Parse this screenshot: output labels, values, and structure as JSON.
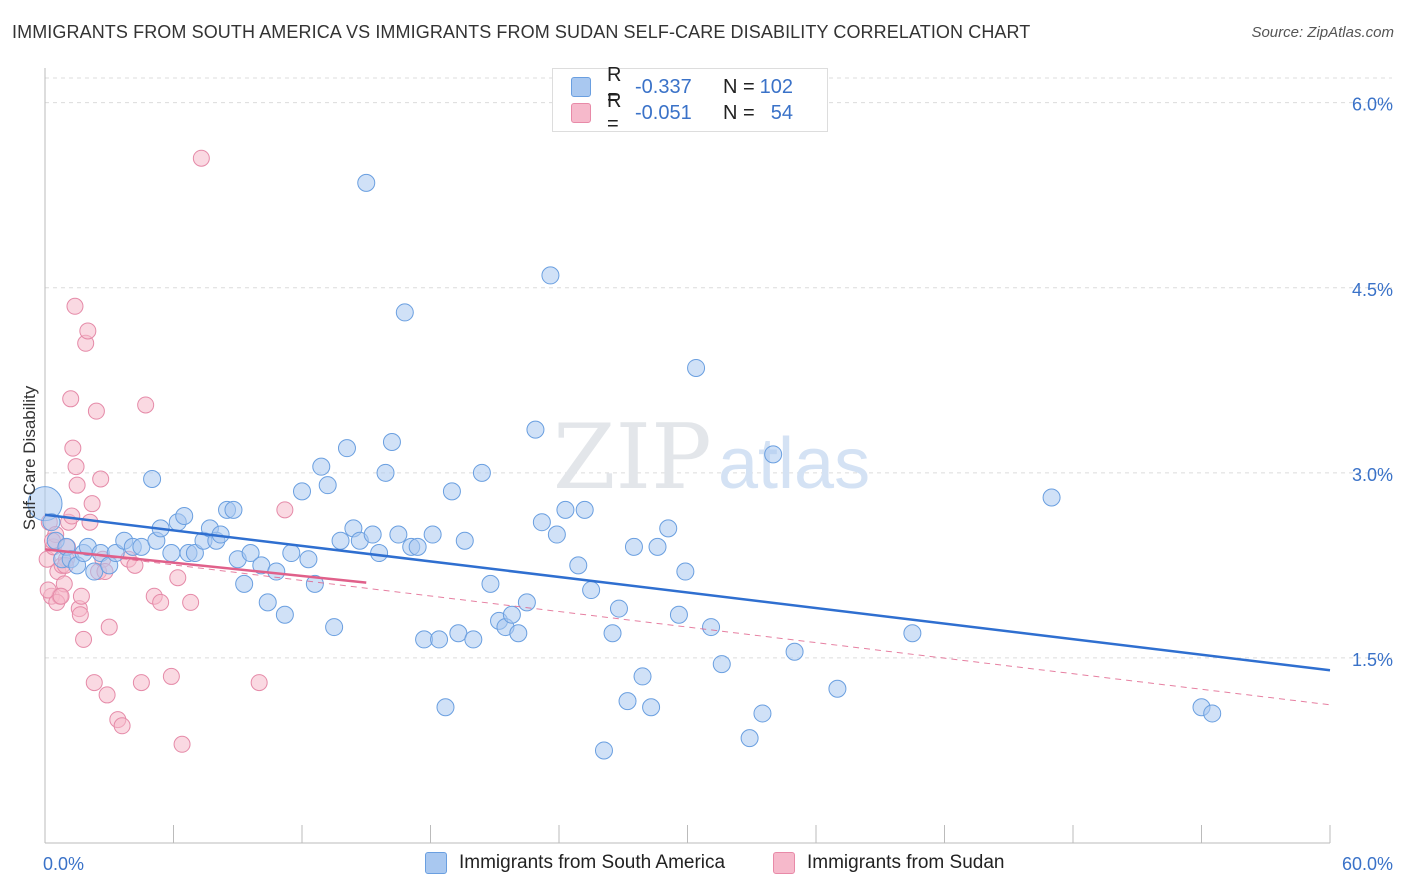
{
  "title": "IMMIGRANTS FROM SOUTH AMERICA VS IMMIGRANTS FROM SUDAN SELF-CARE DISABILITY CORRELATION CHART",
  "source": "Source: ZipAtlas.com",
  "watermark": {
    "zip": "ZIP",
    "atlas": "atlas"
  },
  "legend_top": [
    {
      "r_label": "R =",
      "r_value": "-0.337",
      "n_label": "N =",
      "n_value": "102",
      "color": "#a9c8f0",
      "stroke": "#6a9fe0"
    },
    {
      "r_label": "R =",
      "r_value": "-0.051",
      "n_label": "N =",
      "n_value": "54",
      "color": "#f6b9cb",
      "stroke": "#e88aa8"
    }
  ],
  "colors": {
    "blue_fill": "#a9c8f0",
    "blue_stroke": "#6a9fe0",
    "blue_line": "#2f6fd0",
    "pink_fill": "#f6b9cb",
    "pink_stroke": "#e58aa8",
    "pink_line": "#e0608a",
    "tick_text": "#3a72c8"
  },
  "chart_data": {
    "type": "scatter",
    "title": "IMMIGRANTS FROM SOUTH AMERICA VS IMMIGRANTS FROM SUDAN SELF-CARE DISABILITY CORRELATION CHART",
    "xlabel": "",
    "ylabel": "Self-Care Disability",
    "xlim": [
      0,
      60
    ],
    "ylim": [
      0,
      6.2
    ],
    "x_tick_labels": [
      "0.0%",
      "60.0%"
    ],
    "y_ticks": [
      1.5,
      3.0,
      4.5,
      6.0
    ],
    "y_tick_labels": [
      "1.5%",
      "3.0%",
      "4.5%",
      "6.0%"
    ],
    "grid": true,
    "legend_position": "top-center",
    "series": [
      {
        "name": "Immigrants from South America",
        "points": [
          [
            0.0,
            2.75
          ],
          [
            0.3,
            2.6
          ],
          [
            0.5,
            2.45
          ],
          [
            0.8,
            2.3
          ],
          [
            1.0,
            2.4
          ],
          [
            1.2,
            2.3
          ],
          [
            1.5,
            2.25
          ],
          [
            1.8,
            2.35
          ],
          [
            2.0,
            2.4
          ],
          [
            2.3,
            2.2
          ],
          [
            2.6,
            2.35
          ],
          [
            3.0,
            2.25
          ],
          [
            3.3,
            2.35
          ],
          [
            3.7,
            2.45
          ],
          [
            4.1,
            2.4
          ],
          [
            4.5,
            2.4
          ],
          [
            5.0,
            2.95
          ],
          [
            5.2,
            2.45
          ],
          [
            5.4,
            2.55
          ],
          [
            5.9,
            2.35
          ],
          [
            6.2,
            2.6
          ],
          [
            6.5,
            2.65
          ],
          [
            6.7,
            2.35
          ],
          [
            7.0,
            2.35
          ],
          [
            7.4,
            2.45
          ],
          [
            7.7,
            2.55
          ],
          [
            8.0,
            2.45
          ],
          [
            8.2,
            2.5
          ],
          [
            8.5,
            2.7
          ],
          [
            8.8,
            2.7
          ],
          [
            9.0,
            2.3
          ],
          [
            9.3,
            2.1
          ],
          [
            9.6,
            2.35
          ],
          [
            10.1,
            2.25
          ],
          [
            10.4,
            1.95
          ],
          [
            10.8,
            2.2
          ],
          [
            11.2,
            1.85
          ],
          [
            11.5,
            2.35
          ],
          [
            12.0,
            2.85
          ],
          [
            12.3,
            2.3
          ],
          [
            12.6,
            2.1
          ],
          [
            12.9,
            3.05
          ],
          [
            13.2,
            2.9
          ],
          [
            13.5,
            1.75
          ],
          [
            13.8,
            2.45
          ],
          [
            14.1,
            3.2
          ],
          [
            14.4,
            2.55
          ],
          [
            14.7,
            2.45
          ],
          [
            15.0,
            5.35
          ],
          [
            15.3,
            2.5
          ],
          [
            15.6,
            2.35
          ],
          [
            15.9,
            3.0
          ],
          [
            16.2,
            3.25
          ],
          [
            16.5,
            2.5
          ],
          [
            16.8,
            4.3
          ],
          [
            17.1,
            2.4
          ],
          [
            17.4,
            2.4
          ],
          [
            17.7,
            1.65
          ],
          [
            18.1,
            2.5
          ],
          [
            18.4,
            1.65
          ],
          [
            18.7,
            1.1
          ],
          [
            19.0,
            2.85
          ],
          [
            19.3,
            1.7
          ],
          [
            19.6,
            2.45
          ],
          [
            20.0,
            1.65
          ],
          [
            20.4,
            3.0
          ],
          [
            20.8,
            2.1
          ],
          [
            21.2,
            1.8
          ],
          [
            21.5,
            1.75
          ],
          [
            21.8,
            1.85
          ],
          [
            22.1,
            1.7
          ],
          [
            22.5,
            1.95
          ],
          [
            22.9,
            3.35
          ],
          [
            23.2,
            2.6
          ],
          [
            23.6,
            4.6
          ],
          [
            23.9,
            2.5
          ],
          [
            24.3,
            2.7
          ],
          [
            24.9,
            2.25
          ],
          [
            25.2,
            2.7
          ],
          [
            25.5,
            2.05
          ],
          [
            26.1,
            0.75
          ],
          [
            26.5,
            1.7
          ],
          [
            26.8,
            1.9
          ],
          [
            27.2,
            1.15
          ],
          [
            27.5,
            2.4
          ],
          [
            27.9,
            1.35
          ],
          [
            28.3,
            1.1
          ],
          [
            28.6,
            2.4
          ],
          [
            29.1,
            2.55
          ],
          [
            29.6,
            1.85
          ],
          [
            29.9,
            2.2
          ],
          [
            30.4,
            3.85
          ],
          [
            31.1,
            1.75
          ],
          [
            31.6,
            1.45
          ],
          [
            32.9,
            0.85
          ],
          [
            33.5,
            1.05
          ],
          [
            34.0,
            3.15
          ],
          [
            35.0,
            1.55
          ],
          [
            37.0,
            1.25
          ],
          [
            40.5,
            1.7
          ],
          [
            47.0,
            2.8
          ],
          [
            54.0,
            1.1
          ],
          [
            54.5,
            1.05
          ]
        ],
        "trend": {
          "x": [
            0,
            60
          ],
          "y": [
            2.66,
            1.4
          ]
        }
      },
      {
        "name": "Immigrants from Sudan",
        "points": [
          [
            0.1,
            2.3
          ],
          [
            0.2,
            2.6
          ],
          [
            0.3,
            2.0
          ],
          [
            0.4,
            2.4
          ],
          [
            0.5,
            2.5
          ],
          [
            0.6,
            2.2
          ],
          [
            0.7,
            2.0
          ],
          [
            0.8,
            2.25
          ],
          [
            0.9,
            2.1
          ],
          [
            1.0,
            2.3
          ],
          [
            1.1,
            2.6
          ],
          [
            1.2,
            3.6
          ],
          [
            1.3,
            3.2
          ],
          [
            1.4,
            4.35
          ],
          [
            1.5,
            2.9
          ],
          [
            1.6,
            1.9
          ],
          [
            1.7,
            2.0
          ],
          [
            1.8,
            1.65
          ],
          [
            1.9,
            4.05
          ],
          [
            2.0,
            4.15
          ],
          [
            2.1,
            2.6
          ],
          [
            2.2,
            2.75
          ],
          [
            2.3,
            1.3
          ],
          [
            2.4,
            3.5
          ],
          [
            2.5,
            2.2
          ],
          [
            2.6,
            2.95
          ],
          [
            2.7,
            2.3
          ],
          [
            2.8,
            2.2
          ],
          [
            2.9,
            1.2
          ],
          [
            3.0,
            1.75
          ],
          [
            3.4,
            1.0
          ],
          [
            3.6,
            0.95
          ],
          [
            3.9,
            2.3
          ],
          [
            4.2,
            2.25
          ],
          [
            4.5,
            1.3
          ],
          [
            4.7,
            3.55
          ],
          [
            5.1,
            2.0
          ],
          [
            5.4,
            1.95
          ],
          [
            5.9,
            1.35
          ],
          [
            6.2,
            2.15
          ],
          [
            6.4,
            0.8
          ],
          [
            6.8,
            1.95
          ],
          [
            7.3,
            5.55
          ],
          [
            10.0,
            1.3
          ],
          [
            11.2,
            2.7
          ],
          [
            0.15,
            2.05
          ],
          [
            0.35,
            2.45
          ],
          [
            0.55,
            1.95
          ],
          [
            0.75,
            2.0
          ],
          [
            0.95,
            2.25
          ],
          [
            1.05,
            2.4
          ],
          [
            1.25,
            2.65
          ],
          [
            1.45,
            3.05
          ],
          [
            1.65,
            1.85
          ]
        ],
        "trend": {
          "x": [
            0,
            15
          ],
          "y": [
            2.38,
            2.11
          ]
        },
        "trend_extended": {
          "x": [
            0,
            60
          ],
          "y": [
            2.38,
            1.12
          ]
        }
      }
    ]
  }
}
